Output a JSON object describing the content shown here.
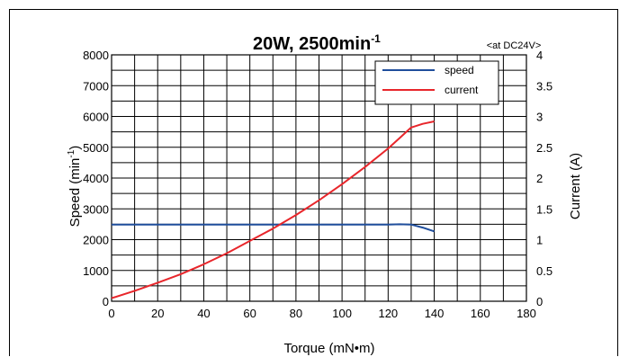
{
  "chart_data": {
    "type": "line",
    "title_main": "20W, 2500min",
    "title_sup": "-1",
    "note": "<at DC24V>",
    "xlabel": "Torque (mN•m)",
    "ylabel_left": "Speed (min",
    "ylabel_left_sup": "-1",
    "ylabel_left_close": ")",
    "ylabel_right": "Current (A)",
    "x_ticks": [
      "0",
      "20",
      "40",
      "60",
      "80",
      "100",
      "120",
      "140",
      "160",
      "180"
    ],
    "y_left_ticks": [
      "0",
      "1000",
      "2000",
      "3000",
      "4000",
      "5000",
      "6000",
      "7000",
      "8000"
    ],
    "y_right_ticks": [
      "0",
      "0.5",
      "1",
      "1.5",
      "2",
      "2.5",
      "3",
      "3.5",
      "4"
    ],
    "xlim": [
      0,
      180
    ],
    "ylim_left": [
      0,
      8000
    ],
    "ylim_right": [
      0,
      4
    ],
    "grid": true,
    "legend_position": "top-right",
    "series": [
      {
        "name": "speed",
        "axis": "left",
        "color": "#1f4e9c",
        "points": [
          [
            0,
            2490
          ],
          [
            20,
            2490
          ],
          [
            40,
            2490
          ],
          [
            60,
            2490
          ],
          [
            80,
            2490
          ],
          [
            100,
            2490
          ],
          [
            120,
            2490
          ],
          [
            125,
            2500
          ],
          [
            130,
            2490
          ],
          [
            135,
            2390
          ],
          [
            140,
            2270
          ]
        ]
      },
      {
        "name": "current",
        "axis": "right",
        "color": "#e8262b",
        "points": [
          [
            0,
            0.05
          ],
          [
            10,
            0.17
          ],
          [
            20,
            0.3
          ],
          [
            30,
            0.44
          ],
          [
            40,
            0.6
          ],
          [
            50,
            0.78
          ],
          [
            60,
            0.98
          ],
          [
            70,
            1.18
          ],
          [
            80,
            1.4
          ],
          [
            90,
            1.64
          ],
          [
            100,
            1.9
          ],
          [
            110,
            2.18
          ],
          [
            120,
            2.48
          ],
          [
            125,
            2.65
          ],
          [
            130,
            2.82
          ],
          [
            135,
            2.88
          ],
          [
            140,
            2.92
          ]
        ]
      }
    ]
  }
}
